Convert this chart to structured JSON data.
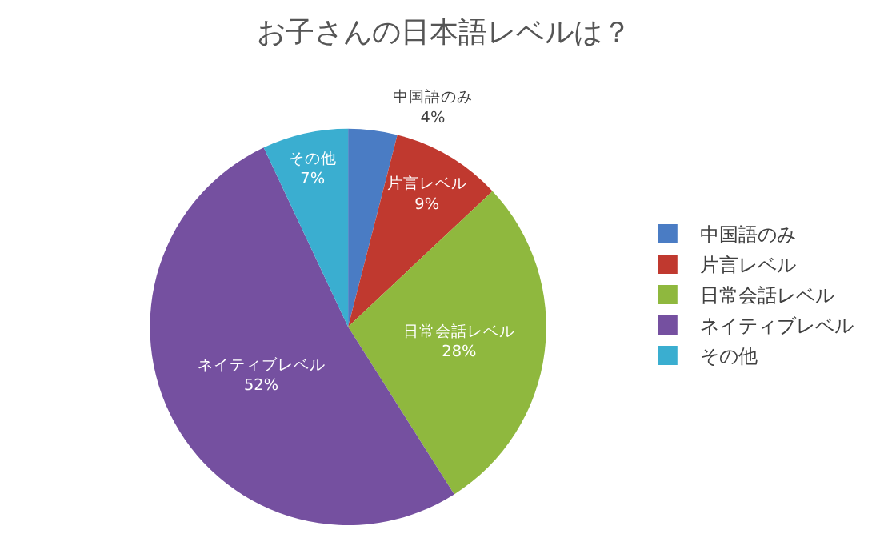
{
  "chart_data": {
    "type": "pie",
    "title": "お子さんの日本語レベルは？",
    "categories": [
      "中国語のみ",
      "片言レベル",
      "日常会話レベル",
      "ネイティブレベル",
      "その他"
    ],
    "values": [
      4,
      9,
      28,
      52,
      7
    ],
    "value_labels": [
      "4%",
      "9%",
      "28%",
      "52%",
      "7%"
    ],
    "colors": [
      "#4a7cc4",
      "#c0392f",
      "#8fb83e",
      "#7550a0",
      "#3aaed0"
    ],
    "legend": "right"
  }
}
